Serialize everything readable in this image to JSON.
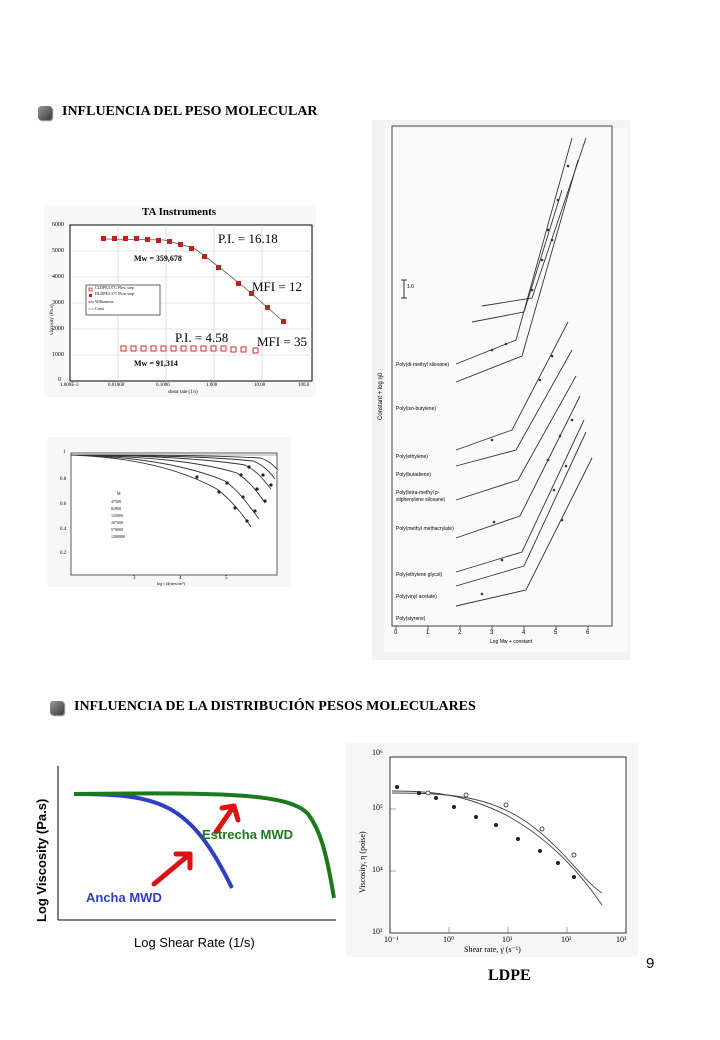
{
  "section1": {
    "heading": "INFLUENCIA DEL PESO MOLECULAR"
  },
  "section2": {
    "heading": "INFLUENCIA DE LA DISTRIBUCIÓN  PESOS MOLECULARES"
  },
  "fig_ta": {
    "title": "TA Instruments",
    "ylabel": "viscosity (Pa.s)",
    "xlabel": "shear rate (1/s)",
    "yticks": [
      "6000",
      "5000",
      "4000",
      "3000",
      "2000",
      "1000",
      "0"
    ],
    "xticks": [
      "1.000E-3",
      "0.01000",
      "0.1000",
      "1.000",
      "10.00",
      "100.0"
    ],
    "legend": [
      "CLDPE3.3\"C Flow step",
      "DLDPE3.3\"C Flow step",
      "Williamson",
      "Cross"
    ],
    "pi_high": "P.I. = 16.18",
    "mw_high": "Mw = 359,678",
    "mfi_high": "MFI = 12",
    "pi_low": "P.I. = 4.58",
    "mw_low": "Mw = 91,314",
    "mfi_low": "MFI = 35"
  },
  "fig_master": {
    "yticks": [
      "1",
      "0.8",
      "0.6",
      "0.4",
      "0.2"
    ],
    "xticks": [
      "3",
      "4",
      "5"
    ],
    "xlabel": "log τ (dynes/cm²)",
    "legend_header": "M",
    "legend": [
      "47500",
      "82900",
      "125000",
      "267000",
      "570000",
      "1200000"
    ]
  },
  "fig_polymers": {
    "ylabel": "Constant + log η0",
    "xlabel": "Log Mw + constant",
    "xticks": [
      "0",
      "1",
      "2",
      "3",
      "4",
      "5",
      "6"
    ],
    "scale": "1.0",
    "labels": [
      "Poly(di-methyl siloxane)",
      "Poly(iso-butylene)",
      "Poly(ethylene)",
      "Poly(butadiene)",
      "Poly(tetra-methyl p-silphenylene siloxane)",
      "Poly(methyl methacrylate)",
      "Poly(ethylene glycol)",
      "Poly(vinyl acetate)",
      "Poly(styrene)"
    ]
  },
  "fig_mwd": {
    "ylabel": "Log Viscosity (Pa.s)",
    "xlabel": "Log Shear Rate (1/s)",
    "narrow": "Estrecha MWD",
    "broad": "Ancha MWD"
  },
  "fig_ldpe": {
    "ylabel": "Viscosity, η (poise)",
    "xlabel": "Shear rate, γ̇ (s⁻¹)",
    "yticks": [
      "10⁶",
      "10⁵",
      "10⁴",
      "10³"
    ],
    "xticks": [
      "10⁻¹",
      "10⁰",
      "10¹",
      "10²",
      "10³"
    ],
    "caption": "LDPE"
  },
  "page_number": "9",
  "colors": {
    "green": "#1c7a1c",
    "blue": "#2f3fbf",
    "red": "#dd1111",
    "marker": "#d01818"
  }
}
